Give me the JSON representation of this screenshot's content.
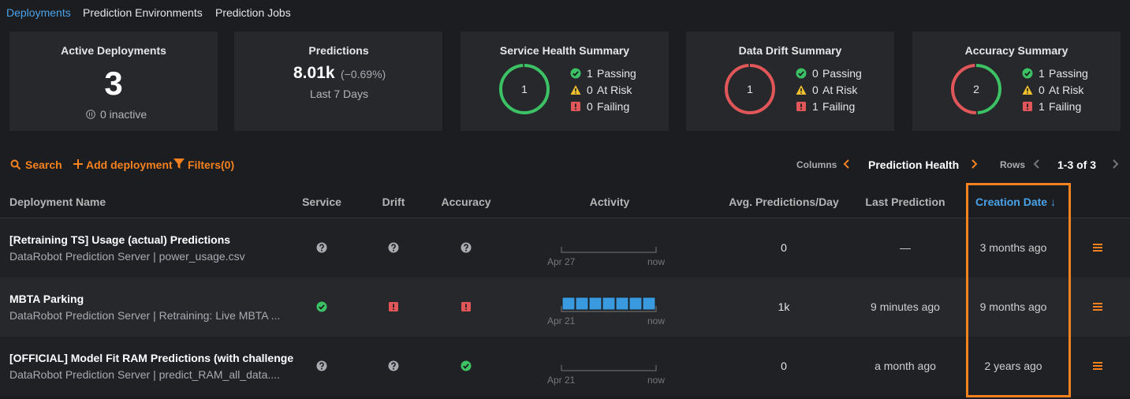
{
  "tabs": [
    "Deployments",
    "Prediction Environments",
    "Prediction Jobs"
  ],
  "summary": {
    "active": {
      "title": "Active Deployments",
      "count": "3",
      "inactive": "0 inactive"
    },
    "predictions": {
      "title": "Predictions",
      "value": "8.01k",
      "change": "(−0.69%)",
      "period": "Last 7 Days"
    },
    "health_cards": [
      {
        "title": "Service Health Summary",
        "total": 1,
        "passing": {
          "count": 1,
          "label": "Passing"
        },
        "at_risk": {
          "count": 0,
          "label": "At Risk"
        },
        "failing": {
          "count": 0,
          "label": "Failing"
        }
      },
      {
        "title": "Data Drift Summary",
        "total": 1,
        "passing": {
          "count": 0,
          "label": "Passing"
        },
        "at_risk": {
          "count": 0,
          "label": "At Risk"
        },
        "failing": {
          "count": 1,
          "label": "Failing"
        }
      },
      {
        "title": "Accuracy Summary",
        "total": 2,
        "passing": {
          "count": 1,
          "label": "Passing"
        },
        "at_risk": {
          "count": 0,
          "label": "At Risk"
        },
        "failing": {
          "count": 1,
          "label": "Failing"
        }
      }
    ]
  },
  "toolbar": {
    "search": "Search",
    "add": "Add deployment",
    "filters": "Filters(0)",
    "columns_label": "Columns",
    "column_set": "Prediction Health",
    "rows_label": "Rows",
    "rows_range": "1-3 of 3"
  },
  "table": {
    "headers": [
      "Deployment Name",
      "Service",
      "Drift",
      "Accuracy",
      "Activity",
      "Avg. Predictions/Day",
      "Last Prediction",
      "Creation Date ↓"
    ],
    "rows": [
      {
        "name": "[Retraining TS] Usage (actual) Predictions",
        "subtitle": "DataRobot Prediction Server | power_usage.csv",
        "service": "unknown",
        "drift": "unknown",
        "accuracy": "unknown",
        "activity_days": 0,
        "activity_start": "Apr 27",
        "activity_end": "now",
        "avg": "0",
        "last": "—",
        "created": "3 months ago"
      },
      {
        "name": "MBTA Parking",
        "subtitle": "DataRobot Prediction Server | Retraining: Live MBTA ...",
        "service": "passing",
        "drift": "failing",
        "accuracy": "failing",
        "activity_days": 7,
        "activity_start": "Apr 21",
        "activity_end": "now",
        "avg": "1k",
        "last": "9 minutes ago",
        "created": "9 months ago"
      },
      {
        "name": "[OFFICIAL] Model Fit RAM Predictions (with challenge",
        "subtitle": "DataRobot Prediction Server | predict_RAM_all_data....",
        "service": "unknown",
        "drift": "unknown",
        "accuracy": "passing",
        "activity_days": 0,
        "activity_start": "Apr 21",
        "activity_end": "now",
        "avg": "0",
        "last": "a month ago",
        "created": "2 years ago"
      }
    ]
  }
}
